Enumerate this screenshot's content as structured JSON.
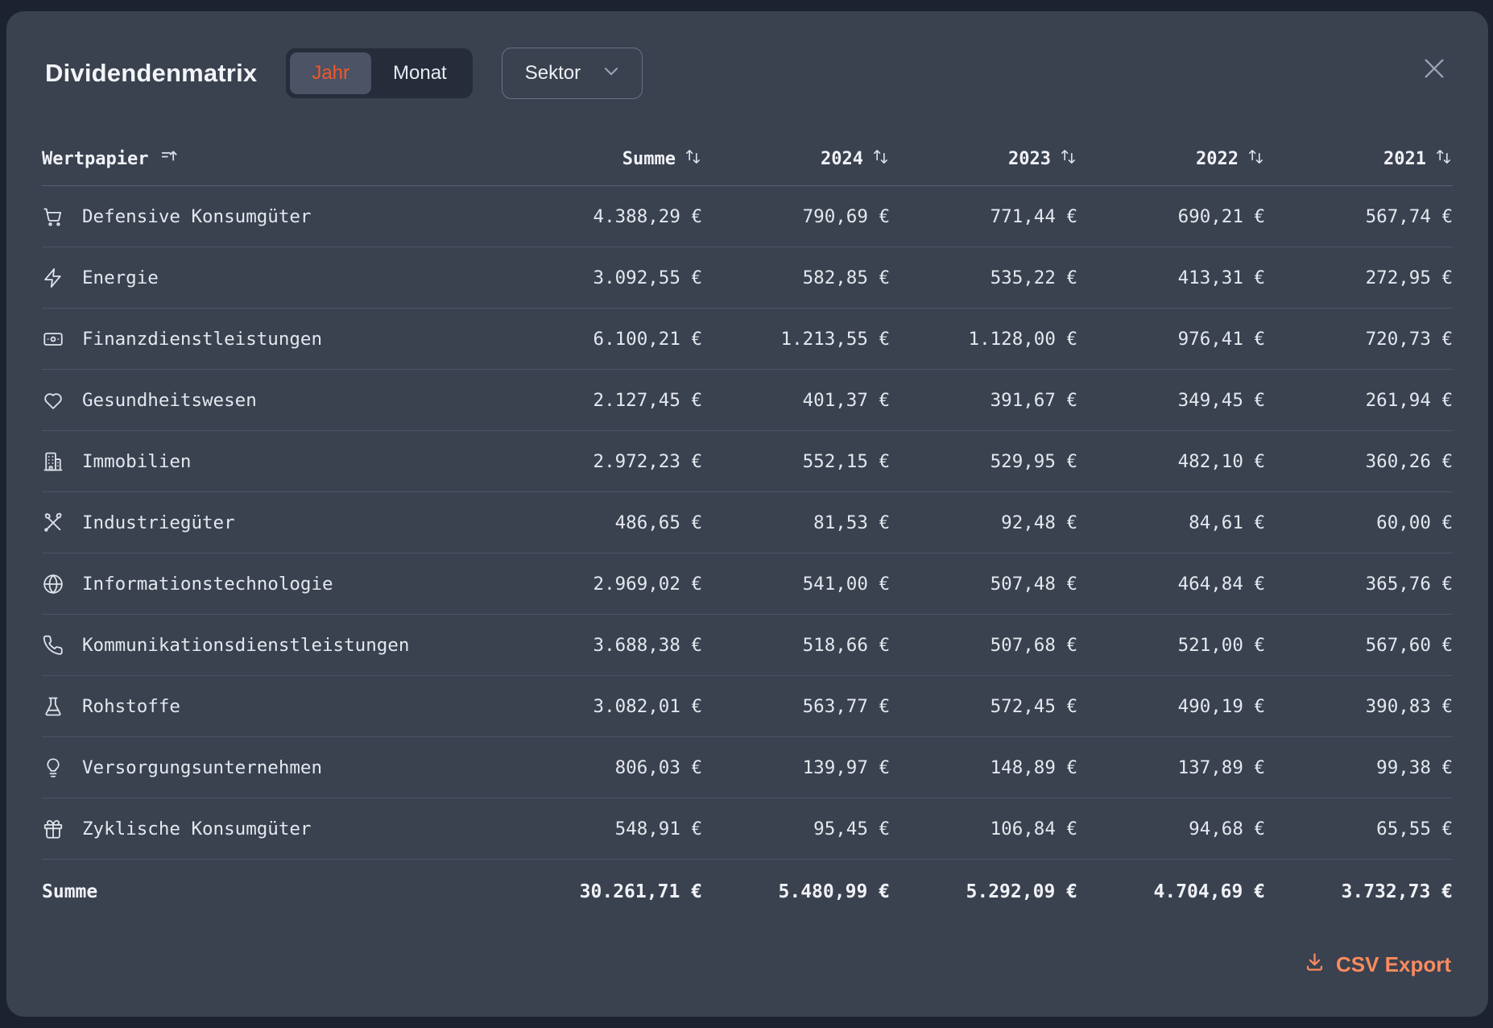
{
  "modal": {
    "title": "Dividendenmatrix",
    "toggle": {
      "options": [
        "Jahr",
        "Monat"
      ],
      "active": "Jahr"
    },
    "sektor_label": "Sektor",
    "csv_export_label": "CSV Export",
    "icons": {
      "close": "close-icon",
      "dropdown": "chevron-down-icon",
      "csv": "download-icon"
    },
    "colors": {
      "accent_active_toggle": "#f4562a",
      "accent_csv": "#f98b5f",
      "modal_bg": "#3a414f",
      "page_bg": "#1c2230"
    }
  },
  "table": {
    "columns": [
      "Wertpapier",
      "Summe",
      "2024",
      "2023",
      "2022",
      "2021"
    ],
    "rows": [
      {
        "icon": "shopping-cart-icon",
        "label": "Defensive Konsumgüter",
        "values": [
          "4.388,29 €",
          "790,69 €",
          "771,44 €",
          "690,21 €",
          "567,74 €"
        ]
      },
      {
        "icon": "zap-icon",
        "label": "Energie",
        "values": [
          "3.092,55 €",
          "582,85 €",
          "535,22 €",
          "413,31 €",
          "272,95 €"
        ]
      },
      {
        "icon": "banknote-icon",
        "label": "Finanzdienstleistungen",
        "values": [
          "6.100,21 €",
          "1.213,55 €",
          "1.128,00 €",
          "976,41 €",
          "720,73 €"
        ]
      },
      {
        "icon": "heart-icon",
        "label": "Gesundheitswesen",
        "values": [
          "2.127,45 €",
          "401,37 €",
          "391,67 €",
          "349,45 €",
          "261,94 €"
        ]
      },
      {
        "icon": "building-icon",
        "label": "Immobilien",
        "values": [
          "2.972,23 €",
          "552,15 €",
          "529,95 €",
          "482,10 €",
          "360,26 €"
        ]
      },
      {
        "icon": "tools-icon",
        "label": "Industriegüter",
        "values": [
          "486,65 €",
          "81,53 €",
          "92,48 €",
          "84,61 €",
          "60,00 €"
        ]
      },
      {
        "icon": "globe-icon",
        "label": "Informationstechnologie",
        "values": [
          "2.969,02 €",
          "541,00 €",
          "507,48 €",
          "464,84 €",
          "365,76 €"
        ]
      },
      {
        "icon": "phone-icon",
        "label": "Kommunikationsdienstleistungen",
        "values": [
          "3.688,38 €",
          "518,66 €",
          "507,68 €",
          "521,00 €",
          "567,60 €"
        ]
      },
      {
        "icon": "flask-icon",
        "label": "Rohstoffe",
        "values": [
          "3.082,01 €",
          "563,77 €",
          "572,45 €",
          "490,19 €",
          "390,83 €"
        ]
      },
      {
        "icon": "lightbulb-icon",
        "label": "Versorgungsunternehmen",
        "values": [
          "806,03 €",
          "139,97 €",
          "148,89 €",
          "137,89 €",
          "99,38 €"
        ]
      },
      {
        "icon": "gift-icon",
        "label": "Zyklische Konsumgüter",
        "values": [
          "548,91 €",
          "95,45 €",
          "106,84 €",
          "94,68 €",
          "65,55 €"
        ]
      }
    ],
    "total": {
      "label": "Summe",
      "values": [
        "30.261,71 €",
        "5.480,99 €",
        "5.292,09 €",
        "4.704,69 €",
        "3.732,73 €"
      ]
    }
  }
}
